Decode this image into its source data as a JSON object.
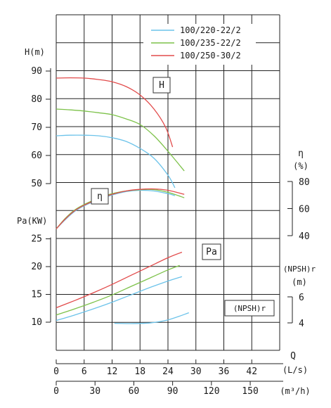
{
  "chart_data": {
    "type": "line",
    "title": "",
    "legend": {
      "placement": "top-right",
      "entries": [
        {
          "name": "100/220-22/2",
          "color": "#6cc3ea"
        },
        {
          "name": "100/235-22/2",
          "color": "#7dc24a"
        },
        {
          "name": "100/250-30/2",
          "color": "#e24b4b"
        }
      ]
    },
    "grid": true,
    "x_axes": [
      {
        "label": "Q",
        "unit": "(L/s)",
        "ticks": [
          "0",
          "6",
          "12",
          "18",
          "24",
          "30",
          "36",
          "42"
        ],
        "range": [
          0,
          48
        ]
      },
      {
        "label": "(m³/h)",
        "ticks": [
          "0",
          "30",
          "60",
          "90",
          "120",
          "150"
        ],
        "range": [
          0,
          172.8
        ]
      }
    ],
    "y_axes": {
      "head": {
        "label": "H(m)",
        "ticks": [
          "50",
          "60",
          "70",
          "80",
          "90"
        ],
        "range": [
          50,
          92
        ]
      },
      "power": {
        "label": "Pa(KW)",
        "ticks": [
          "10",
          "15",
          "20",
          "25"
        ],
        "range": [
          9,
          27
        ]
      },
      "efficiency": {
        "label": "η",
        "unit": "(%)",
        "ticks": [
          "40",
          "60",
          "80"
        ],
        "range": [
          40,
          80
        ]
      },
      "npsh": {
        "label": "(NPSH)r",
        "unit": "(m)",
        "ticks": [
          "4",
          "6"
        ],
        "range": [
          4,
          6
        ]
      }
    },
    "annotations": [
      "H",
      "η",
      "Pa",
      "(NPSH)r"
    ],
    "series": [
      {
        "name": "100/220-22/2",
        "color": "#6cc3ea",
        "curve": "H",
        "points": [
          [
            0,
            67
          ],
          [
            3,
            67.2
          ],
          [
            6,
            67.2
          ],
          [
            9,
            67
          ],
          [
            12,
            66.3
          ],
          [
            15,
            65
          ],
          [
            18,
            62.5
          ],
          [
            21,
            59
          ],
          [
            24,
            53
          ],
          [
            25.5,
            48.5
          ]
        ]
      },
      {
        "name": "100/235-22/2",
        "color": "#7dc24a",
        "curve": "H",
        "points": [
          [
            0,
            76.5
          ],
          [
            3,
            76.2
          ],
          [
            6,
            75.8
          ],
          [
            9,
            75.2
          ],
          [
            12,
            74.5
          ],
          [
            15,
            73
          ],
          [
            18,
            71
          ],
          [
            21,
            67
          ],
          [
            24,
            61.5
          ],
          [
            27.5,
            54.5
          ]
        ]
      },
      {
        "name": "100/250-30/2",
        "color": "#e24b4b",
        "curve": "H",
        "points": [
          [
            0,
            87.5
          ],
          [
            3,
            87.6
          ],
          [
            6,
            87.5
          ],
          [
            9,
            87
          ],
          [
            12,
            86.2
          ],
          [
            15,
            84.5
          ],
          [
            18,
            81.5
          ],
          [
            21,
            76.5
          ],
          [
            23.5,
            70
          ],
          [
            25,
            63
          ]
        ]
      },
      {
        "name": "100/220-22/2",
        "color": "#6cc3ea",
        "curve": "η",
        "points": [
          [
            0,
            45
          ],
          [
            2,
            52
          ],
          [
            4,
            58
          ],
          [
            6,
            62
          ],
          [
            9,
            66.5
          ],
          [
            12,
            70
          ],
          [
            15,
            72.5
          ],
          [
            18,
            73.5
          ],
          [
            21,
            73
          ],
          [
            24,
            71
          ],
          [
            25.5,
            69.5
          ]
        ]
      },
      {
        "name": "100/235-22/2",
        "color": "#7dc24a",
        "curve": "η",
        "points": [
          [
            0,
            45
          ],
          [
            2,
            53
          ],
          [
            4,
            59
          ],
          [
            6,
            63
          ],
          [
            9,
            67.5
          ],
          [
            12,
            71
          ],
          [
            15,
            73
          ],
          [
            18,
            74
          ],
          [
            21,
            74
          ],
          [
            24,
            72
          ],
          [
            27.5,
            68
          ]
        ]
      },
      {
        "name": "100/250-30/2",
        "color": "#e24b4b",
        "curve": "η",
        "points": [
          [
            0,
            45
          ],
          [
            2,
            52.5
          ],
          [
            4,
            58.5
          ],
          [
            6,
            62.5
          ],
          [
            9,
            67
          ],
          [
            12,
            70.5
          ],
          [
            15,
            73
          ],
          [
            18,
            74.2
          ],
          [
            21,
            74.5
          ],
          [
            24,
            73.5
          ],
          [
            27.5,
            70.5
          ]
        ]
      },
      {
        "name": "100/220-22/2",
        "color": "#6cc3ea",
        "curve": "Pa",
        "points": [
          [
            0,
            10.3
          ],
          [
            4,
            11.3
          ],
          [
            8,
            12.4
          ],
          [
            12,
            13.6
          ],
          [
            16,
            14.9
          ],
          [
            20,
            16.2
          ],
          [
            24,
            17.4
          ],
          [
            27,
            18.2
          ]
        ]
      },
      {
        "name": "100/235-22/2",
        "color": "#7dc24a",
        "curve": "Pa",
        "points": [
          [
            0,
            11.3
          ],
          [
            4,
            12.4
          ],
          [
            8,
            13.6
          ],
          [
            12,
            14.9
          ],
          [
            16,
            16.4
          ],
          [
            20,
            17.9
          ],
          [
            24,
            19.4
          ],
          [
            26.5,
            20.2
          ]
        ]
      },
      {
        "name": "100/250-30/2",
        "color": "#e24b4b",
        "curve": "Pa",
        "points": [
          [
            0,
            12.6
          ],
          [
            4,
            13.9
          ],
          [
            8,
            15.3
          ],
          [
            12,
            16.8
          ],
          [
            16,
            18.4
          ],
          [
            20,
            20
          ],
          [
            24,
            21.6
          ],
          [
            27,
            22.6
          ]
        ]
      },
      {
        "name": "100/220-22/2",
        "color": "#6cc3ea",
        "curve": "(NPSH)r",
        "points": [
          [
            12.5,
            9.8
          ],
          [
            16,
            9.75
          ],
          [
            20,
            9.85
          ],
          [
            24,
            10.4
          ],
          [
            28.5,
            11.7
          ]
        ]
      }
    ]
  }
}
